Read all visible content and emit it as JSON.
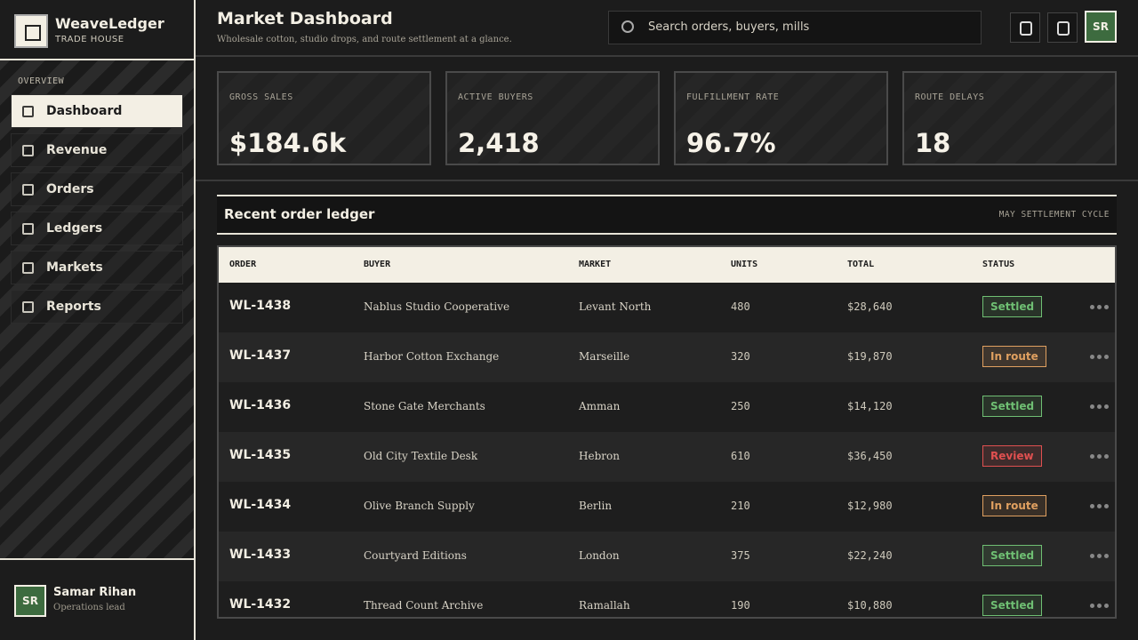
{
  "brand": {
    "name": "WeaveLedger",
    "subtitle": "TRADE HOUSE"
  },
  "sidebar": {
    "section": "OVERVIEW",
    "items": [
      "Dashboard",
      "Revenue",
      "Orders",
      "Ledgers",
      "Markets",
      "Reports"
    ],
    "active": 0
  },
  "user": {
    "initials": "SR",
    "name": "Samar Rihan",
    "role": "Operations lead"
  },
  "header": {
    "title": "Market Dashboard",
    "subtitle": "Wholesale cotton, studio drops, and route settlement at a glance.",
    "search_placeholder": "Search orders, buyers, mills"
  },
  "stats": [
    {
      "label": "GROSS SALES",
      "value": "$184.6k"
    },
    {
      "label": "ACTIVE BUYERS",
      "value": "2,418"
    },
    {
      "label": "FULFILLMENT RATE",
      "value": "96.7%"
    },
    {
      "label": "ROUTE DELAYS",
      "value": "18"
    }
  ],
  "table": {
    "title": "Recent order ledger",
    "note": "MAY SETTLEMENT CYCLE",
    "columns": [
      "ORDER",
      "BUYER",
      "MARKET",
      "UNITS",
      "TOTAL",
      "STATUS"
    ],
    "rows": [
      {
        "cells": [
          "WL-1438",
          "Nablus Studio Cooperative",
          "Levant North",
          "480",
          "$28,640",
          "Settled"
        ],
        "status_color": "#6fbf73"
      },
      {
        "cells": [
          "WL-1437",
          "Harbor Cotton Exchange",
          "Marseille",
          "320",
          "$19,870",
          "In route"
        ],
        "status_color": "#e0a060"
      },
      {
        "cells": [
          "WL-1436",
          "Stone Gate Merchants",
          "Amman",
          "250",
          "$14,120",
          "Settled"
        ],
        "status_color": "#6fbf73"
      },
      {
        "cells": [
          "WL-1435",
          "Old City Textile Desk",
          "Hebron",
          "610",
          "$36,450",
          "Review"
        ],
        "status_color": "#e05050"
      },
      {
        "cells": [
          "WL-1434",
          "Olive Branch Supply",
          "Berlin",
          "210",
          "$12,980",
          "In route"
        ],
        "status_color": "#e0a060"
      },
      {
        "cells": [
          "WL-1433",
          "Courtyard Editions",
          "London",
          "375",
          "$22,240",
          "Settled"
        ],
        "status_color": "#6fbf73"
      },
      {
        "cells": [
          "WL-1432",
          "Thread Count Archive",
          "Ramallah",
          "190",
          "$10,880",
          "Settled"
        ],
        "status_color": "#6fbf73"
      }
    ]
  }
}
